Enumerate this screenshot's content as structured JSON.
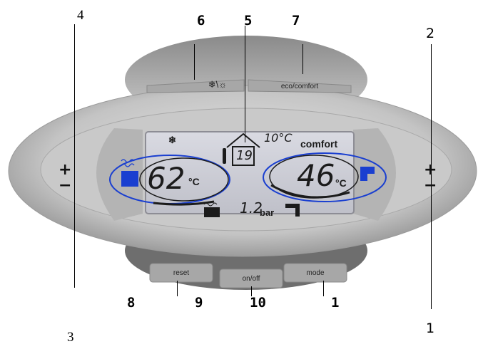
{
  "callouts": {
    "c4": "4",
    "c6": "6",
    "c5": "5",
    "c7": "7",
    "c2": "2",
    "c8": "8",
    "c9": "9",
    "c10": "10",
    "c1_bottom": "1",
    "c1_right": "1",
    "c3": "3"
  },
  "buttons": {
    "season": "❄\\☼",
    "eco_comfort": "eco/comfort",
    "reset": "reset",
    "on_off": "on/off",
    "mode": "mode"
  },
  "controls": {
    "left_plus": "+",
    "left_minus": "−",
    "right_plus": "+",
    "right_minus": "−"
  },
  "display": {
    "frost_symbol": "❄",
    "heating_temp": "62",
    "heating_unit": "°C",
    "outdoor_temp": "10°C",
    "room_value": "19",
    "mode_text": "comfort",
    "dhw_temp": "46",
    "dhw_unit": "°C",
    "pressure_value": "1.2",
    "pressure_unit": "bar"
  },
  "colors": {
    "accent_blue": "#1a3fd0",
    "lcd_bg": "#cfd0d8",
    "panel": "#b9b9b9"
  }
}
